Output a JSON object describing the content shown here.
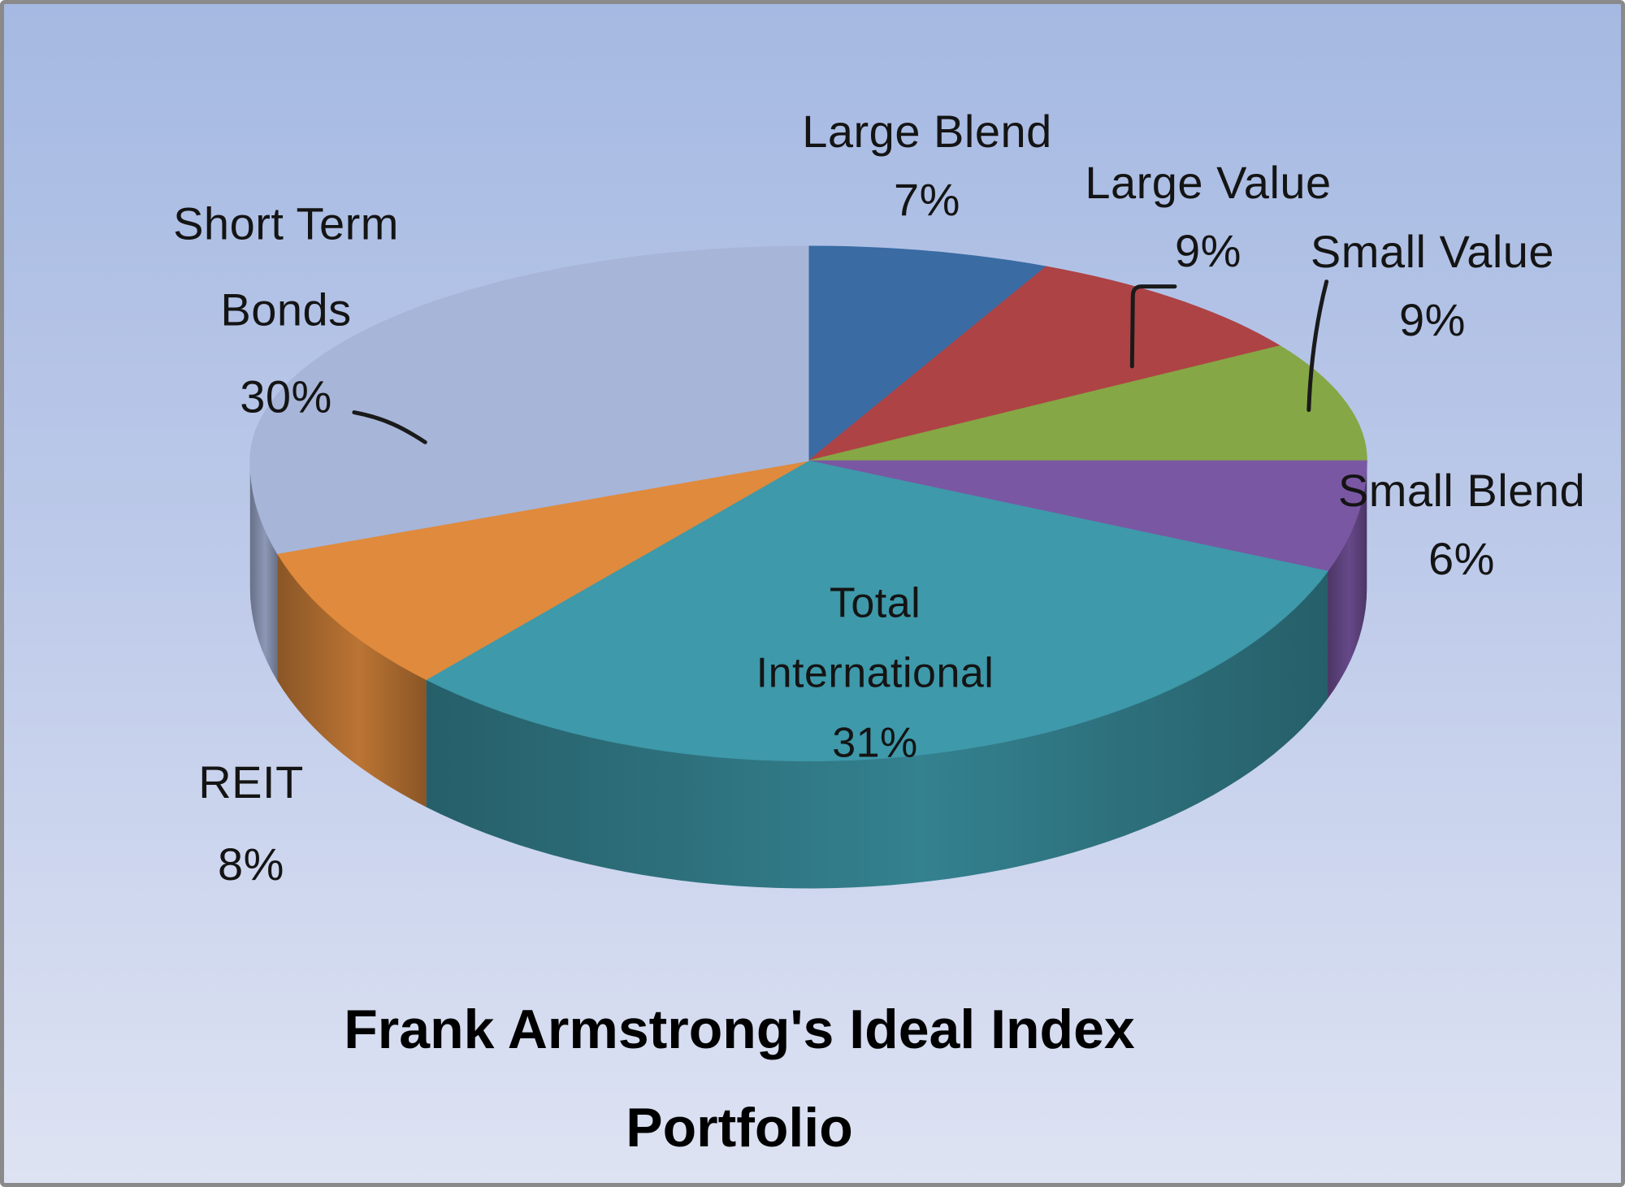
{
  "chart_data": {
    "type": "pie",
    "style": "3d-pie",
    "title": "Frank Armstrong's Ideal Index Portfolio",
    "title_lines": [
      "Frank Armstrong's Ideal Index",
      "Portfolio"
    ],
    "unit": "%",
    "start_angle_deg": 0,
    "direction": "clockwise",
    "legend_position": "none",
    "total_percent": 100,
    "label_style": "outside labels with leader lines; Total International labeled inside slice",
    "segments": [
      {
        "label": "Large Blend",
        "value": 7,
        "pct_label": "7%",
        "color": "#3A6BA3"
      },
      {
        "label": "Large Value",
        "value": 9,
        "pct_label": "9%",
        "color": "#AE4345"
      },
      {
        "label": "Small Value",
        "value": 9,
        "pct_label": "9%",
        "color": "#86A745"
      },
      {
        "label": "Small Blend",
        "value": 6,
        "pct_label": "6%",
        "color": "#7A57A3"
      },
      {
        "label": "Total International",
        "value": 31,
        "pct_label": "31%",
        "color": "#3E99AA"
      },
      {
        "label": "REIT",
        "value": 8,
        "pct_label": "8%",
        "color": "#DF8A3D"
      },
      {
        "label": "Short Term Bonds",
        "value": 30,
        "pct_label": "30%",
        "color": "#A7B5D9"
      }
    ],
    "background": {
      "gradient_top": "#A5B9E2",
      "gradient_bottom": "#DEE3F3",
      "border_color": "#8A8A8A",
      "text_color": "#141414"
    }
  }
}
